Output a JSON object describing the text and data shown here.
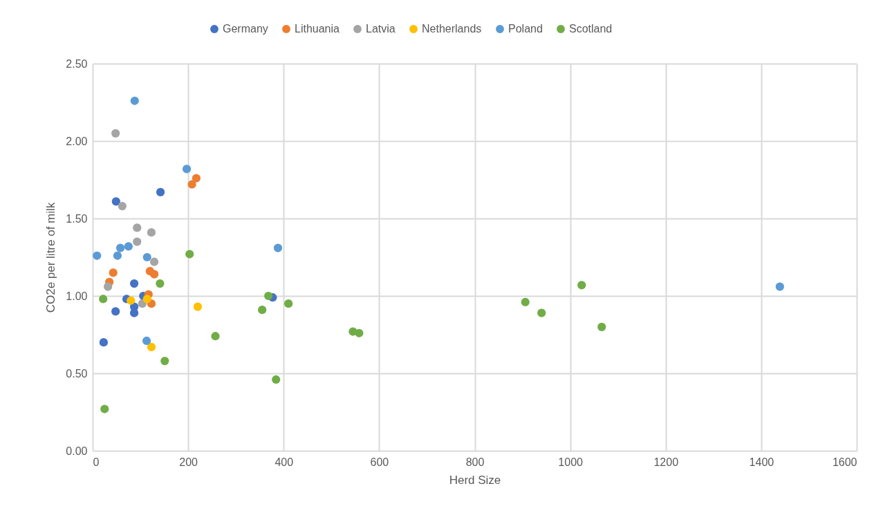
{
  "chart_data": {
    "type": "scatter",
    "xlabel": "Herd Size",
    "ylabel": "CO2e per litre of milk",
    "legend": "top",
    "grid": true,
    "marker": "circle",
    "xlim": [
      0,
      1600
    ],
    "xticks": [
      0,
      200,
      400,
      600,
      800,
      1000,
      1200,
      1400,
      1600
    ],
    "ylim": [
      0,
      2.5
    ],
    "yticks": [
      {
        "value": 0,
        "label": "0.00"
      },
      {
        "value": 0.5,
        "label": "0.50"
      },
      {
        "value": 1,
        "label": "1.00"
      },
      {
        "value": 1.5,
        "label": "1.50"
      },
      {
        "value": 2,
        "label": "2.00"
      },
      {
        "value": 2.5,
        "label": "2.50"
      }
    ],
    "series": [
      {
        "name": "Germany",
        "color": "#4472c4",
        "x": [
          49,
          142,
          87,
          71,
          106,
          87,
          87,
          48,
          23,
          377
        ],
        "values": [
          1.61,
          1.67,
          1.08,
          0.98,
          1.0,
          0.93,
          0.89,
          0.9,
          0.7,
          0.99
        ]
      },
      {
        "name": "Lithuania",
        "color": "#ed7d31",
        "x": [
          43,
          35,
          120,
          129,
          117,
          123,
          208,
          217
        ],
        "values": [
          1.15,
          1.09,
          1.16,
          1.14,
          1.01,
          0.95,
          1.72,
          1.76
        ]
      },
      {
        "name": "Latvia",
        "color": "#a5a5a5",
        "x": [
          48,
          62,
          93,
          123,
          93,
          129,
          32,
          104
        ],
        "values": [
          2.05,
          1.58,
          1.44,
          1.41,
          1.35,
          1.22,
          1.06,
          0.95
        ]
      },
      {
        "name": "Netherlands",
        "color": "#ffc000",
        "x": [
          80,
          114,
          220,
          123
        ],
        "values": [
          0.97,
          0.98,
          0.93,
          0.67
        ]
      },
      {
        "name": "Poland",
        "color": "#5b9bd5",
        "x": [
          88,
          197,
          9,
          58,
          75,
          52,
          114,
          388,
          113,
          1439
        ],
        "values": [
          2.26,
          1.82,
          1.26,
          1.31,
          1.32,
          1.26,
          1.25,
          1.31,
          0.71,
          1.06
        ]
      },
      {
        "name": "Scotland",
        "color": "#70ad47",
        "x": [
          22,
          25,
          141,
          151,
          203,
          257,
          355,
          368,
          384,
          410,
          545,
          558,
          906,
          940,
          1024,
          1066
        ],
        "values": [
          0.98,
          0.27,
          1.08,
          0.58,
          1.27,
          0.74,
          0.91,
          1.0,
          0.46,
          0.95,
          0.77,
          0.76,
          0.96,
          0.89,
          1.07,
          0.8
        ]
      }
    ]
  }
}
